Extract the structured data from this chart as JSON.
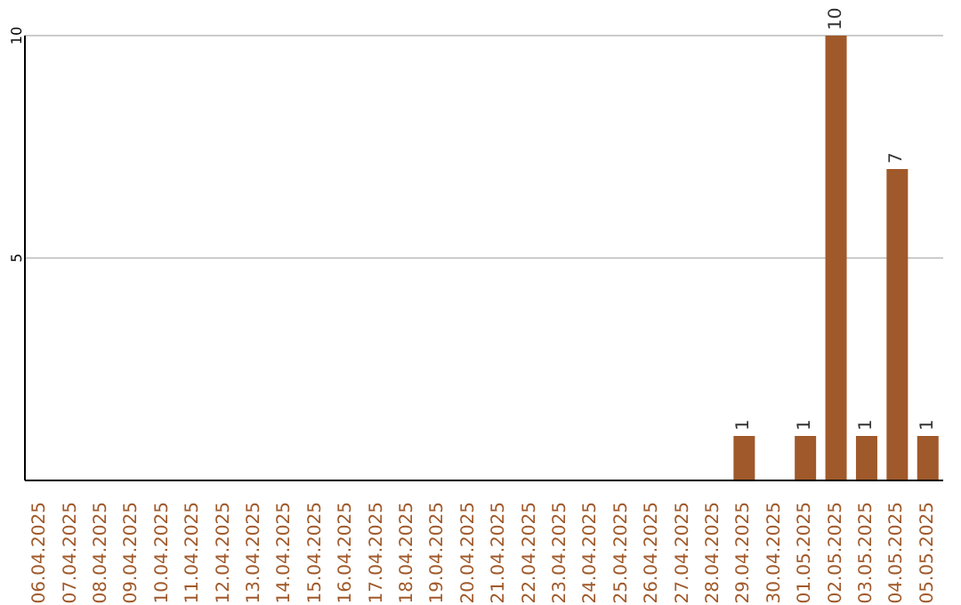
{
  "chart_data": {
    "type": "bar",
    "categories": [
      "06.04.2025",
      "07.04.2025",
      "08.04.2025",
      "09.04.2025",
      "10.04.2025",
      "11.04.2025",
      "12.04.2025",
      "13.04.2025",
      "14.04.2025",
      "15.04.2025",
      "16.04.2025",
      "17.04.2025",
      "18.04.2025",
      "19.04.2025",
      "20.04.2025",
      "21.04.2025",
      "22.04.2025",
      "23.04.2025",
      "24.04.2025",
      "25.04.2025",
      "26.04.2025",
      "27.04.2025",
      "28.04.2025",
      "29.04.2025",
      "30.04.2025",
      "01.05.2025",
      "02.05.2025",
      "03.05.2025",
      "04.05.2025",
      "05.05.2025"
    ],
    "values": [
      0,
      0,
      0,
      0,
      0,
      0,
      0,
      0,
      0,
      0,
      0,
      0,
      0,
      0,
      0,
      0,
      0,
      0,
      0,
      0,
      0,
      0,
      0,
      1,
      0,
      1,
      10,
      1,
      7,
      1
    ],
    "value_labels": [
      null,
      null,
      null,
      null,
      null,
      null,
      null,
      null,
      null,
      null,
      null,
      null,
      null,
      null,
      null,
      null,
      null,
      null,
      null,
      null,
      null,
      null,
      null,
      "1",
      null,
      "1",
      "10",
      "1",
      "7",
      "1"
    ],
    "color": "#a0592a",
    "ylim": [
      0,
      10
    ],
    "yticks": [
      5,
      10
    ],
    "grid": "y"
  }
}
